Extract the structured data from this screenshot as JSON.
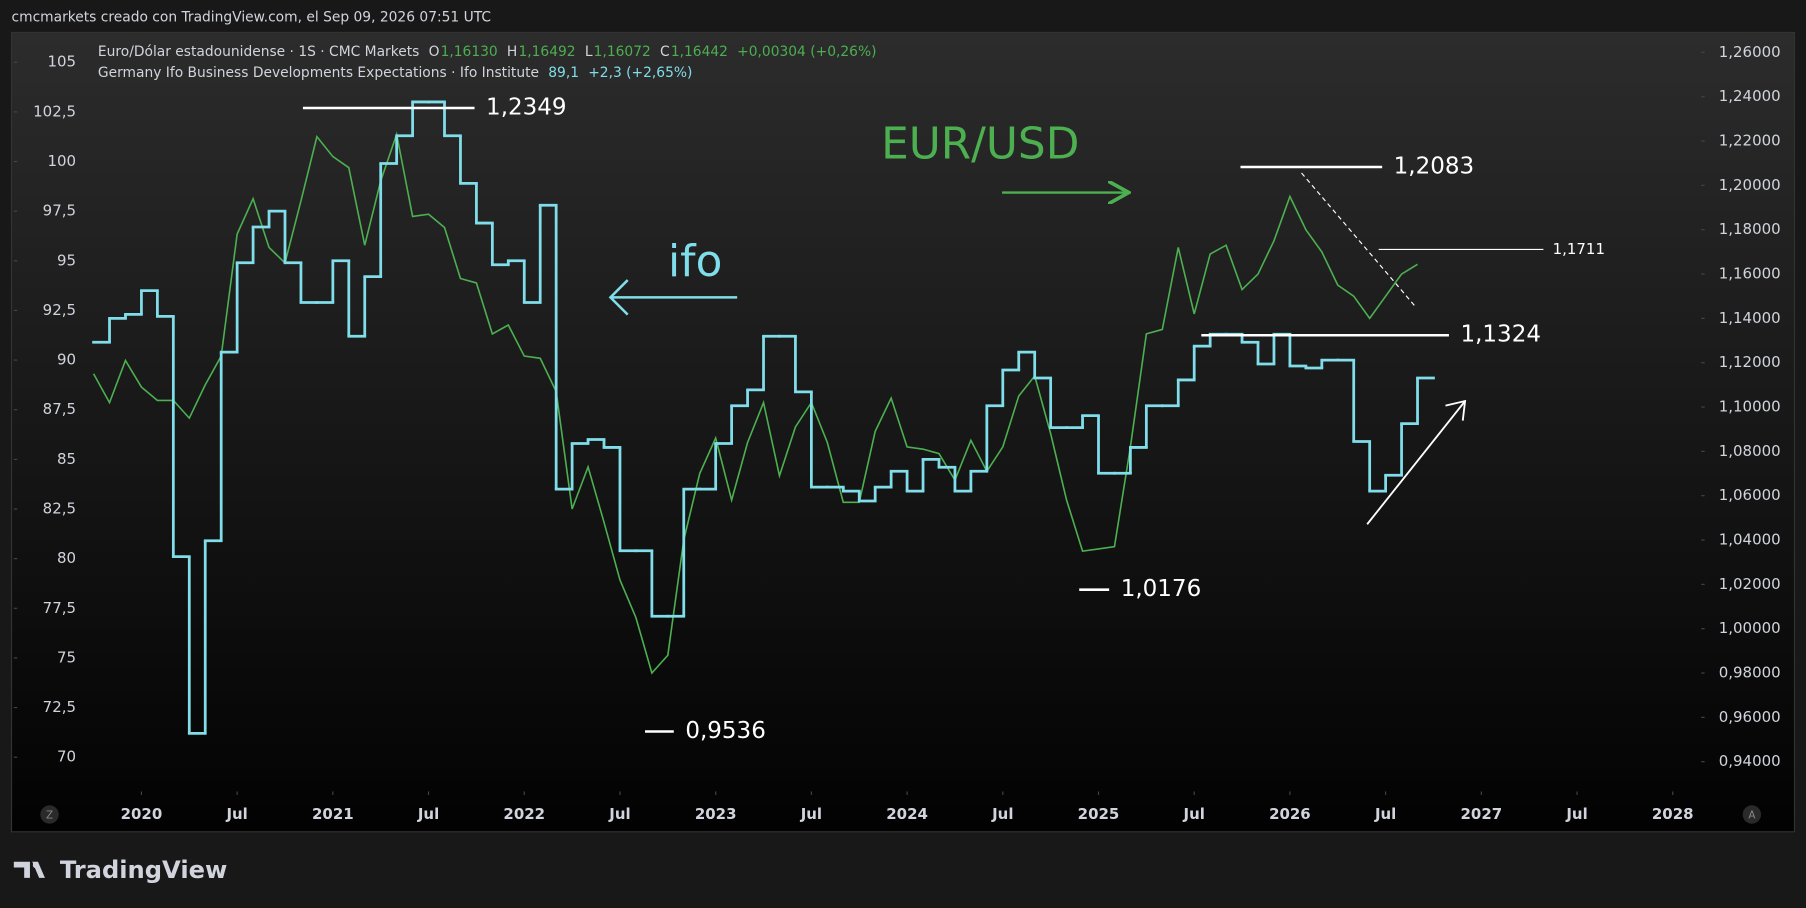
{
  "header": "cmcmarkets creado con TradingView.com, el Sep 09, 2026 07:51 UTC",
  "footer": "TradingView",
  "chart_data": {
    "type": "line",
    "x": [
      "2019-10",
      "2019-11",
      "2019-12",
      "2020-01",
      "2020-02",
      "2020-03",
      "2020-04",
      "2020-05",
      "2020-06",
      "2020-07",
      "2020-08",
      "2020-09",
      "2020-10",
      "2020-11",
      "2020-12",
      "2021-01",
      "2021-02",
      "2021-03",
      "2021-04",
      "2021-05",
      "2021-06",
      "2021-07",
      "2021-08",
      "2021-09",
      "2021-10",
      "2021-11",
      "2021-12",
      "2022-01",
      "2022-02",
      "2022-03",
      "2022-04",
      "2022-05",
      "2022-06",
      "2022-07",
      "2022-08",
      "2022-09",
      "2022-10",
      "2022-11",
      "2022-12",
      "2023-01",
      "2023-02",
      "2023-03",
      "2023-04",
      "2023-05",
      "2023-06",
      "2023-07",
      "2023-08",
      "2023-09",
      "2023-10",
      "2023-11",
      "2023-12",
      "2024-01",
      "2024-02",
      "2024-03",
      "2024-04",
      "2024-05",
      "2024-06",
      "2024-07",
      "2024-08",
      "2024-09",
      "2024-10",
      "2024-11",
      "2024-12",
      "2025-01",
      "2025-02",
      "2025-03",
      "2025-04",
      "2025-05",
      "2025-06",
      "2025-07",
      "2025-08",
      "2025-09",
      "2025-10",
      "2025-11",
      "2025-12",
      "2026-01",
      "2026-02",
      "2026-03",
      "2026-04",
      "2026-05",
      "2026-06",
      "2026-07",
      "2026-08",
      "2026-09"
    ],
    "xlim": [
      "2019-05",
      "2028-03"
    ],
    "xticks": [
      {
        "value": "2020-01",
        "label": "2020"
      },
      {
        "value": "2020-07",
        "label": "Jul"
      },
      {
        "value": "2021-01",
        "label": "2021"
      },
      {
        "value": "2021-07",
        "label": "Jul"
      },
      {
        "value": "2022-01",
        "label": "2022"
      },
      {
        "value": "2022-07",
        "label": "Jul"
      },
      {
        "value": "2023-01",
        "label": "2023"
      },
      {
        "value": "2023-07",
        "label": "Jul"
      },
      {
        "value": "2024-01",
        "label": "2024"
      },
      {
        "value": "2024-07",
        "label": "Jul"
      },
      {
        "value": "2025-01",
        "label": "2025"
      },
      {
        "value": "2025-07",
        "label": "Jul"
      },
      {
        "value": "2026-01",
        "label": "2026"
      },
      {
        "value": "2026-07",
        "label": "Jul"
      },
      {
        "value": "2027-01",
        "label": "2027"
      },
      {
        "value": "2027-07",
        "label": "Jul"
      },
      {
        "value": "2028-01",
        "label": "2028"
      }
    ],
    "ylim": [
      68.1,
      106.5
    ],
    "yticks": [
      70,
      {
        "value": 72.5,
        "label": "72,5"
      },
      75,
      {
        "value": 77.5,
        "label": "77,5"
      },
      80,
      {
        "value": 82.5,
        "label": "82,5"
      },
      85,
      {
        "value": 87.5,
        "label": "87,5"
      },
      90,
      {
        "value": 92.5,
        "label": "92,5"
      },
      95,
      {
        "value": 97.5,
        "label": "97,5"
      },
      100,
      {
        "value": 102.5,
        "label": "102,5"
      },
      105
    ],
    "y2lim": [
      0.925,
      1.269
    ],
    "y2ticks": [
      {
        "value": 0.94,
        "label": "0,94000"
      },
      {
        "value": 0.96,
        "label": "0,96000"
      },
      {
        "value": 0.98,
        "label": "0,98000"
      },
      {
        "value": 1.0,
        "label": "1,00000"
      },
      {
        "value": 1.02,
        "label": "1,02000"
      },
      {
        "value": 1.04,
        "label": "1,04000"
      },
      {
        "value": 1.06,
        "label": "1,06000"
      },
      {
        "value": 1.08,
        "label": "1,08000"
      },
      {
        "value": 1.1,
        "label": "1,10000"
      },
      {
        "value": 1.12,
        "label": "1,12000"
      },
      {
        "value": 1.14,
        "label": "1,14000"
      },
      {
        "value": 1.16,
        "label": "1,16000"
      },
      {
        "value": 1.18,
        "label": "1,18000"
      },
      {
        "value": 1.2,
        "label": "1,20000"
      },
      {
        "value": 1.22,
        "label": "1,22000"
      },
      {
        "value": 1.24,
        "label": "1,24000"
      },
      {
        "value": 1.26,
        "label": "1,26000"
      }
    ],
    "series": [
      {
        "name": "Euro/Dólar estadounidense · 1S · CMC Markets",
        "color": "#4caf50",
        "axis": "y2",
        "legend_values": [
          "O",
          "1,16130",
          "H",
          "1,16492",
          "L",
          "1,16072",
          "C",
          "1,16442",
          "+0,00304 (+0,26%)"
        ],
        "values": [
          1.115,
          1.102,
          1.121,
          1.109,
          1.103,
          1.103,
          1.095,
          1.11,
          1.123,
          1.178,
          1.194,
          1.172,
          1.165,
          1.193,
          1.222,
          1.213,
          1.208,
          1.173,
          1.202,
          1.223,
          1.186,
          1.187,
          1.181,
          1.158,
          1.156,
          1.133,
          1.137,
          1.123,
          1.122,
          1.107,
          1.054,
          1.073,
          1.048,
          1.022,
          1.005,
          0.98,
          0.988,
          1.04,
          1.07,
          1.086,
          1.058,
          1.084,
          1.102,
          1.069,
          1.091,
          1.102,
          1.084,
          1.057,
          1.057,
          1.089,
          1.104,
          1.082,
          1.081,
          1.079,
          1.067,
          1.085,
          1.071,
          1.082,
          1.105,
          1.114,
          1.088,
          1.058,
          1.035,
          1.036,
          1.037,
          1.082,
          1.133,
          1.135,
          1.172,
          1.142,
          1.169,
          1.173,
          1.153,
          1.16,
          1.175,
          1.195,
          1.18,
          1.17,
          1.155,
          1.15,
          1.14,
          1.15,
          1.16,
          1.1644
        ]
      },
      {
        "name": "Germany Ifo Business Developments Expectations · Ifo Institute",
        "color": "#80deea",
        "step": true,
        "legend_values": [
          "89,1",
          "+2,3 (+2,65%)"
        ],
        "values": [
          90.9,
          92.1,
          92.3,
          93.5,
          92.2,
          80.1,
          71.2,
          80.9,
          90.4,
          94.9,
          96.7,
          97.5,
          94.9,
          92.9,
          92.9,
          95.0,
          91.2,
          94.2,
          99.9,
          101.3,
          103.0,
          103.0,
          101.3,
          98.9,
          96.9,
          94.8,
          95.0,
          92.9,
          97.8,
          83.5,
          85.8,
          86.0,
          85.6,
          80.4,
          80.4,
          77.1,
          77.1,
          83.5,
          83.5,
          85.8,
          87.7,
          88.5,
          91.2,
          91.2,
          88.4,
          83.6,
          83.6,
          83.4,
          82.9,
          83.6,
          84.4,
          83.4,
          85.0,
          84.6,
          83.4,
          84.4,
          87.7,
          89.5,
          90.4,
          89.1,
          86.6,
          86.6,
          87.2,
          84.3,
          84.3,
          85.6,
          87.7,
          87.7,
          89.0,
          90.7,
          91.3,
          91.3,
          90.9,
          89.8,
          91.3,
          89.7,
          89.6,
          90.0,
          90.0,
          85.9,
          83.4,
          84.2,
          86.8,
          89.1
        ]
      }
    ],
    "annotations": [
      {
        "value": 1.2349,
        "label": "1,2349"
      },
      {
        "value": 1.2083,
        "label": "1,2083"
      },
      {
        "value": 1.1711,
        "label": "1,1711"
      },
      {
        "value": 1.1324,
        "label": "1,1324"
      },
      {
        "value": 1.0176,
        "label": "1,0176"
      },
      {
        "value": 0.9536,
        "label": "0,9536"
      }
    ],
    "texts": [
      "EUR/USD",
      "ifo"
    ],
    "axis_buttons": [
      "Z",
      "A"
    ]
  }
}
